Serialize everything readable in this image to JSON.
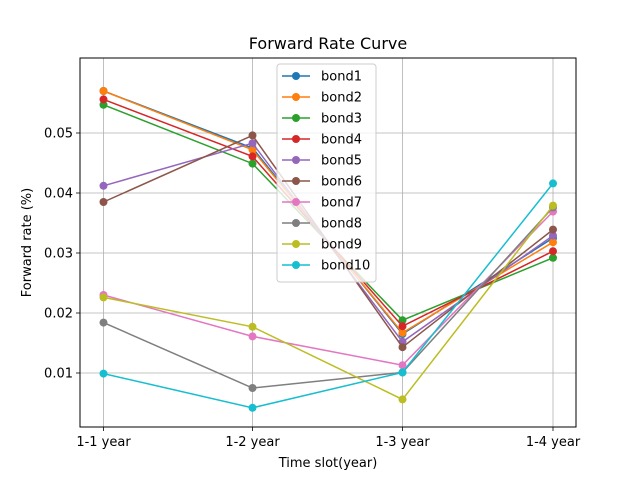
{
  "chart_data": {
    "type": "line",
    "title": "Forward Rate Curve",
    "xlabel": "Time slot(year)",
    "ylabel": "Forward rate (%)",
    "categories": [
      "1-1 year",
      "1-2 year",
      "1-3 year",
      "1-4 year"
    ],
    "ylim": [
      0.001,
      0.0625
    ],
    "yticks": [
      0.01,
      0.02,
      0.03,
      0.04,
      0.05
    ],
    "ytick_labels": [
      "0.01",
      "0.02",
      "0.03",
      "0.04",
      "0.05"
    ],
    "grid": true,
    "legend_position": "top-center",
    "series": [
      {
        "name": "bond1",
        "color": "#1f77b4",
        "values": [
          0.057,
          0.0475,
          0.0165,
          0.0325
        ]
      },
      {
        "name": "bond2",
        "color": "#ff7f0e",
        "values": [
          0.057,
          0.0472,
          0.0167,
          0.0318
        ]
      },
      {
        "name": "bond3",
        "color": "#2ca02c",
        "values": [
          0.0547,
          0.0449,
          0.0188,
          0.0292
        ]
      },
      {
        "name": "bond4",
        "color": "#d62728",
        "values": [
          0.0556,
          0.0461,
          0.0178,
          0.0303
        ]
      },
      {
        "name": "bond5",
        "color": "#9467bd",
        "values": [
          0.0412,
          0.0483,
          0.0152,
          0.0329
        ]
      },
      {
        "name": "bond6",
        "color": "#8c564b",
        "values": [
          0.0385,
          0.0496,
          0.0143,
          0.0339
        ]
      },
      {
        "name": "bond7",
        "color": "#e377c2",
        "values": [
          0.023,
          0.0161,
          0.0113,
          0.0369
        ]
      },
      {
        "name": "bond8",
        "color": "#7f7f7f",
        "values": [
          0.0184,
          0.0075,
          0.0101,
          0.0376
        ]
      },
      {
        "name": "bond9",
        "color": "#bcbd22",
        "values": [
          0.0226,
          0.0177,
          0.0056,
          0.0379
        ]
      },
      {
        "name": "bond10",
        "color": "#17becf",
        "values": [
          0.0099,
          0.0042,
          0.0101,
          0.0416
        ]
      }
    ]
  }
}
